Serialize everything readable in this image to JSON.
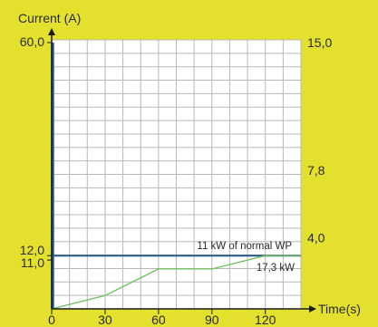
{
  "chart_data": {
    "type": "line",
    "y_axis_left": {
      "label": "Current (A)",
      "range": [
        0,
        60
      ],
      "ticks": [
        {
          "value": 60,
          "label": "60,0"
        },
        {
          "value": 12,
          "label": "12,0"
        },
        {
          "value": 11,
          "label": "11,0"
        }
      ]
    },
    "y_axis_right": {
      "range": [
        0,
        15
      ],
      "ticks": [
        {
          "value": 15,
          "label": "15,0"
        },
        {
          "value": 7.8,
          "label": "7,8"
        },
        {
          "value": 4.0,
          "label": "4,0"
        }
      ]
    },
    "x_axis": {
      "label": "Time(s)",
      "range": [
        0,
        140
      ],
      "ticks": [
        0,
        30,
        60,
        90,
        120
      ]
    },
    "grid": true,
    "series": [
      {
        "name": "11 kW of normal WP",
        "color": "#1f5a8a",
        "x": [
          0,
          140
        ],
        "y": [
          12,
          12
        ]
      },
      {
        "name": "17,3 kW",
        "color": "#6dbf5a",
        "x": [
          0,
          30,
          60,
          90,
          120,
          140
        ],
        "y": [
          0,
          3,
          9,
          9,
          12,
          12
        ]
      }
    ],
    "initial_spike": {
      "color": "#1f5a8a",
      "x": 0,
      "y": 60
    }
  }
}
